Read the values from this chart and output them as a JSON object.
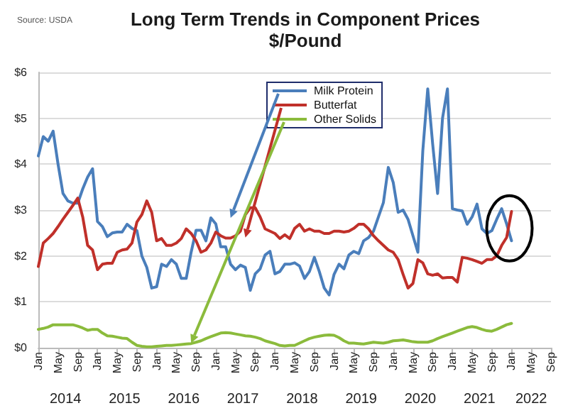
{
  "chart_data": {
    "type": "line",
    "title": "Long Term Trends in Component Prices",
    "subtitle": "$/Pound",
    "annotations": [
      "Source: USDA",
      "2014",
      "2015",
      "2016",
      "2017",
      "2018",
      "2019",
      "2020",
      "2021",
      "2022"
    ],
    "categories": [
      "Jan",
      null,
      null,
      null,
      "May",
      null,
      null,
      null,
      "Sep",
      null,
      null,
      null,
      "Jan",
      null,
      null,
      null,
      "May",
      null,
      null,
      null,
      "Sep",
      null,
      null,
      null,
      "Jan",
      null,
      null,
      null,
      "May",
      null,
      null,
      null,
      "Sep",
      null,
      null,
      null,
      "Jan",
      null,
      null,
      null,
      "May",
      null,
      null,
      null,
      "Sep",
      null,
      null,
      null,
      "Jan",
      null,
      null,
      null,
      "May",
      null,
      null,
      null,
      "Sep",
      null,
      null,
      null,
      "Jan",
      null,
      null,
      null,
      "May",
      null,
      null,
      null,
      "Sep",
      null,
      null,
      null,
      "Jan",
      null,
      null,
      null,
      "May",
      null,
      null,
      null,
      "Sep",
      null,
      null,
      null,
      "Jan",
      null,
      null,
      null,
      "May",
      null,
      null,
      null,
      "Sep",
      null,
      null,
      null,
      "Jan",
      null,
      null,
      null,
      "May",
      null,
      null,
      null,
      "Sep"
    ],
    "series": [
      {
        "name": "Milk Protein",
        "color": "#4a7ebb",
        "values": [
          4.18,
          4.6,
          4.5,
          4.72,
          4.0,
          3.36,
          3.2,
          3.15,
          3.15,
          3.46,
          3.72,
          3.9,
          2.75,
          2.64,
          2.42,
          2.5,
          2.52,
          2.52,
          2.69,
          2.6,
          2.55,
          2.0,
          1.75,
          1.3,
          1.33,
          1.82,
          1.77,
          1.92,
          1.82,
          1.51,
          1.51,
          2.08,
          2.56,
          2.56,
          2.33,
          2.83,
          2.7,
          2.2,
          2.2,
          1.82,
          1.7,
          1.8,
          1.75,
          1.25,
          1.61,
          1.72,
          2.02,
          2.1,
          1.61,
          1.66,
          1.82,
          1.82,
          1.85,
          1.78,
          1.51,
          1.66,
          1.97,
          1.66,
          1.3,
          1.15,
          1.6,
          1.82,
          1.72,
          2.02,
          2.1,
          2.05,
          2.33,
          2.4,
          2.54,
          2.85,
          3.16,
          3.93,
          3.6,
          2.95,
          3.0,
          2.8,
          2.44,
          2.08,
          4.29,
          5.64,
          4.44,
          3.36,
          5.0,
          5.64,
          3.03,
          3.0,
          2.98,
          2.69,
          2.85,
          3.13,
          2.59,
          2.49,
          2.55,
          2.8,
          3.03,
          2.7,
          2.33,
          null,
          null,
          null,
          null,
          null,
          null,
          null,
          null
        ]
      },
      {
        "name": "Butterfat",
        "color": "#c0302a",
        "values": [
          1.77,
          2.28,
          2.38,
          2.49,
          2.64,
          2.8,
          2.95,
          3.1,
          3.26,
          2.85,
          2.23,
          2.13,
          1.7,
          1.82,
          1.84,
          1.84,
          2.08,
          2.13,
          2.15,
          2.28,
          2.74,
          2.9,
          3.2,
          2.95,
          2.33,
          2.38,
          2.23,
          2.23,
          2.28,
          2.38,
          2.59,
          2.49,
          2.33,
          2.08,
          2.13,
          2.28,
          2.52,
          2.44,
          2.39,
          2.39,
          2.44,
          2.54,
          2.9,
          3.05,
          3.05,
          2.85,
          2.59,
          2.54,
          2.49,
          2.38,
          2.46,
          2.38,
          2.6,
          2.69,
          2.54,
          2.59,
          2.54,
          2.54,
          2.49,
          2.49,
          2.54,
          2.54,
          2.52,
          2.54,
          2.6,
          2.69,
          2.69,
          2.59,
          2.44,
          2.33,
          2.23,
          2.13,
          2.08,
          1.92,
          1.6,
          1.3,
          1.4,
          1.92,
          1.85,
          1.61,
          1.58,
          1.61,
          1.52,
          1.53,
          1.53,
          1.43,
          1.97,
          1.95,
          1.92,
          1.88,
          1.84,
          1.92,
          1.92,
          2.0,
          2.23,
          2.4,
          2.97,
          null,
          null,
          null,
          null,
          null,
          null,
          null,
          null
        ]
      },
      {
        "name": "Other Solids",
        "color": "#8bbb3c",
        "values": [
          0.4,
          0.42,
          0.45,
          0.5,
          0.5,
          0.5,
          0.5,
          0.5,
          0.47,
          0.43,
          0.38,
          0.4,
          0.4,
          0.32,
          0.26,
          0.25,
          0.23,
          0.21,
          0.2,
          0.12,
          0.05,
          0.03,
          0.02,
          0.02,
          0.03,
          0.04,
          0.05,
          0.05,
          0.06,
          0.07,
          0.08,
          0.09,
          0.12,
          0.15,
          0.2,
          0.24,
          0.28,
          0.32,
          0.33,
          0.32,
          0.3,
          0.28,
          0.26,
          0.25,
          0.23,
          0.2,
          0.15,
          0.12,
          0.09,
          0.05,
          0.04,
          0.05,
          0.05,
          0.1,
          0.15,
          0.2,
          0.23,
          0.25,
          0.27,
          0.28,
          0.27,
          0.22,
          0.15,
          0.1,
          0.1,
          0.09,
          0.08,
          0.1,
          0.12,
          0.11,
          0.1,
          0.12,
          0.15,
          0.16,
          0.17,
          0.15,
          0.13,
          0.12,
          0.12,
          0.12,
          0.15,
          0.2,
          0.24,
          0.28,
          0.32,
          0.36,
          0.4,
          0.44,
          0.46,
          0.44,
          0.4,
          0.37,
          0.36,
          0.4,
          0.45,
          0.5,
          0.53,
          null,
          null,
          null,
          null,
          null,
          null,
          null,
          null
        ]
      }
    ],
    "ylim": [
      0,
      6
    ],
    "yticks": [
      {
        "value": 0,
        "label": "$0"
      },
      {
        "value": 1,
        "label": "$1"
      },
      {
        "value": 2,
        "label": "$2"
      },
      {
        "value": 3,
        "label": "$3"
      },
      {
        "value": 4,
        "label": "$4"
      },
      {
        "value": 5,
        "label": "$5"
      },
      {
        "value": 6,
        "label": "$6"
      }
    ],
    "grid": "y",
    "legend": "top right",
    "marker": "none",
    "line_style": "solid"
  }
}
